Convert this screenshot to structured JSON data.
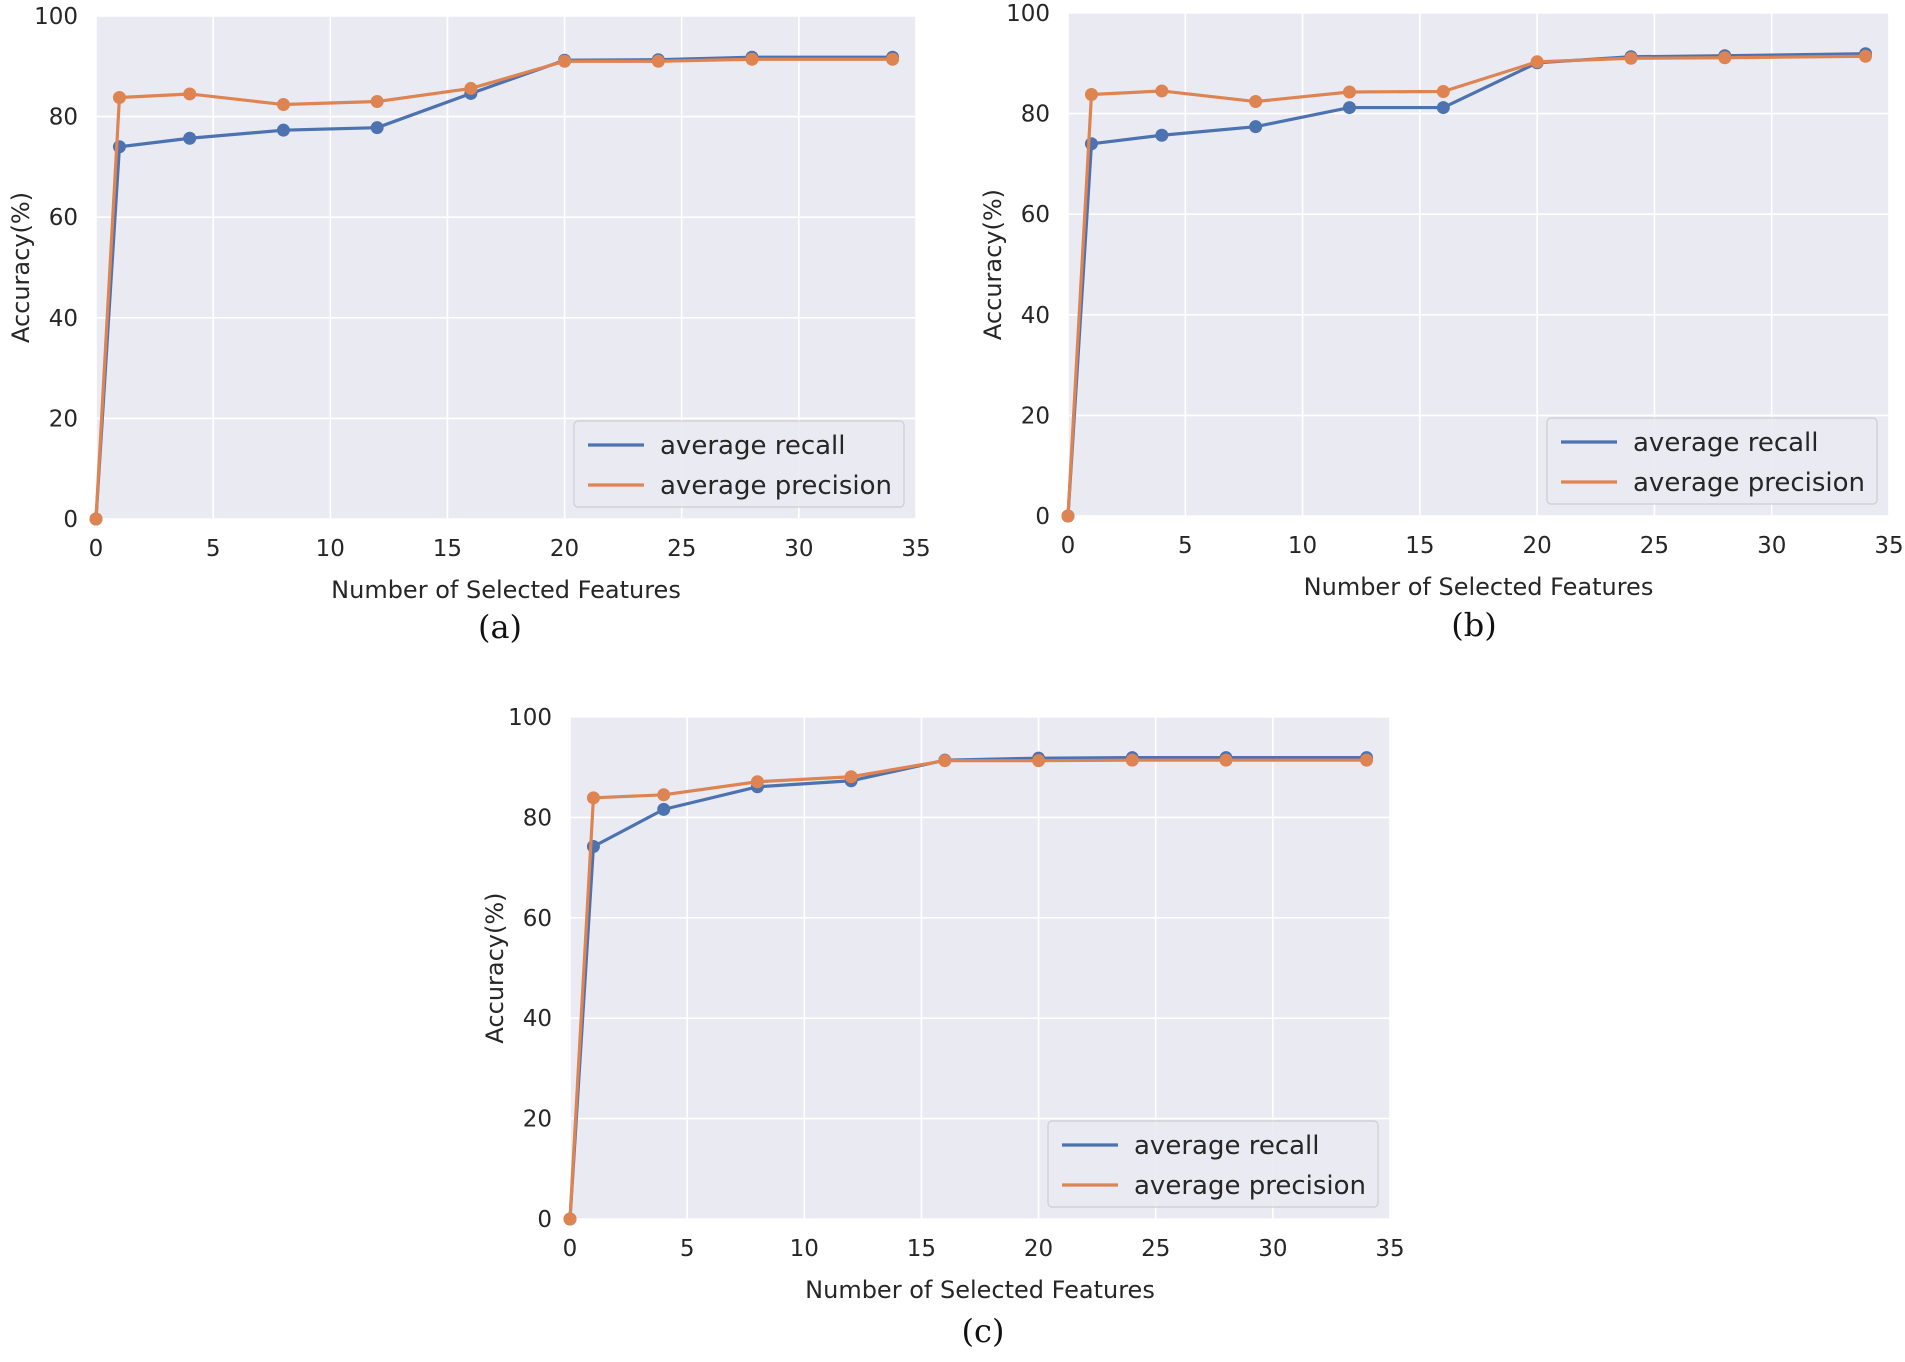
{
  "colors": {
    "recall": "#4c72b0",
    "precision": "#dd8452",
    "plot_bg": "#eaeaf2",
    "grid": "#ffffff",
    "text": "#262626"
  },
  "chart_data": [
    {
      "type": "line",
      "caption": "(a)",
      "xlabel": "Number of Selected Features",
      "ylabel": "Accuracy(%)",
      "xlim": [
        0,
        35
      ],
      "ylim": [
        0,
        100
      ],
      "xticks": [
        0,
        5,
        10,
        15,
        20,
        25,
        30,
        35
      ],
      "yticks": [
        0,
        20,
        40,
        60,
        80,
        100
      ],
      "legend_position": "bottom-right",
      "x": [
        0,
        1,
        4,
        8,
        12,
        16,
        20,
        24,
        28,
        34
      ],
      "series": [
        {
          "name": "average recall",
          "values": [
            0,
            74,
            75.7,
            77.3,
            77.8,
            84.6,
            91.2,
            91.3,
            91.8,
            91.8
          ]
        },
        {
          "name": "average precision",
          "values": [
            0,
            83.8,
            84.5,
            82.4,
            83,
            85.6,
            91,
            91,
            91.4,
            91.4
          ]
        }
      ]
    },
    {
      "type": "line",
      "caption": "(b)",
      "xlabel": "Number of Selected Features",
      "ylabel": "Accuracy(%)",
      "xlim": [
        0,
        35
      ],
      "ylim": [
        0,
        100
      ],
      "xticks": [
        0,
        5,
        10,
        15,
        20,
        25,
        30,
        35
      ],
      "yticks": [
        0,
        20,
        40,
        60,
        80,
        100
      ],
      "legend_position": "bottom-right",
      "x": [
        0,
        1,
        4,
        8,
        12,
        16,
        20,
        24,
        28,
        34
      ],
      "series": [
        {
          "name": "average recall",
          "values": [
            0,
            74,
            75.7,
            77.4,
            81.2,
            81.2,
            90.1,
            91.3,
            91.5,
            91.9
          ]
        },
        {
          "name": "average precision",
          "values": [
            0,
            83.8,
            84.5,
            82.4,
            84.3,
            84.4,
            90.3,
            91,
            91.1,
            91.4
          ]
        }
      ]
    },
    {
      "type": "line",
      "caption": "(c)",
      "xlabel": "Number of Selected Features",
      "ylabel": "Accuracy(%)",
      "xlim": [
        0,
        35
      ],
      "ylim": [
        0,
        100
      ],
      "xticks": [
        0,
        5,
        10,
        15,
        20,
        25,
        30,
        35
      ],
      "yticks": [
        0,
        20,
        40,
        60,
        80,
        100
      ],
      "legend_position": "bottom-right",
      "x": [
        0,
        1,
        4,
        8,
        12,
        16,
        20,
        24,
        28,
        34
      ],
      "series": [
        {
          "name": "average recall",
          "values": [
            0,
            74.2,
            81.6,
            86.1,
            87.3,
            91.4,
            91.8,
            91.9,
            91.9,
            91.9
          ]
        },
        {
          "name": "average precision",
          "values": [
            0,
            83.9,
            84.5,
            87.1,
            88.1,
            91.3,
            91.3,
            91.4,
            91.4,
            91.4
          ]
        }
      ]
    }
  ]
}
